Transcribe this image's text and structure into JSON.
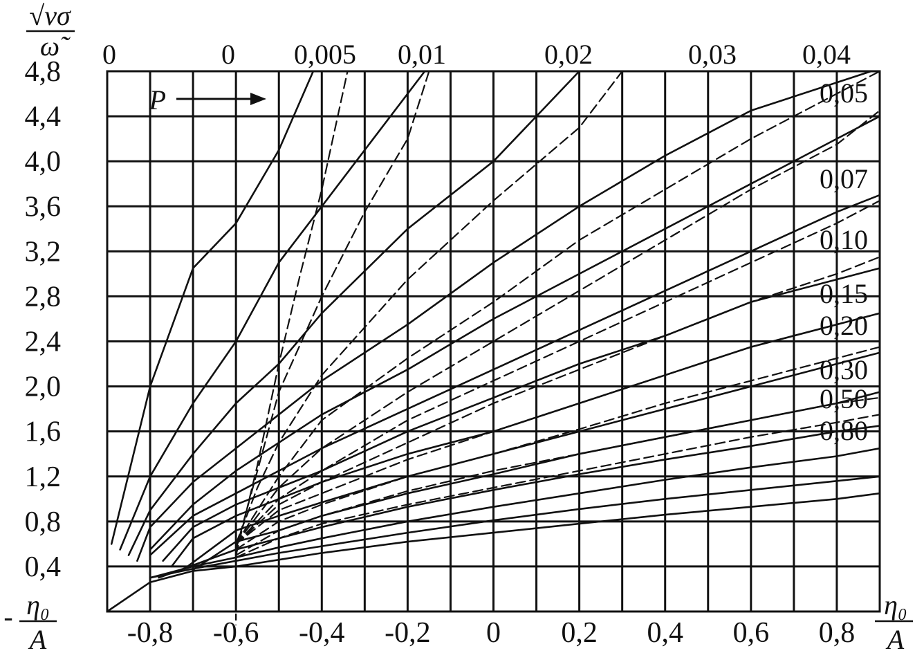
{
  "chart_data": {
    "type": "line",
    "x_axis_label_lines": [
      "η₀",
      "A"
    ],
    "x_axis_label_left_sign": "-",
    "y_axis_label_top": "√νσ",
    "y_axis_label_bottom": "ω̃",
    "xlim": [
      -0.9,
      0.9
    ],
    "ylim": [
      0,
      4.8
    ],
    "grid": true,
    "x_ticks": [
      -0.8,
      -0.6,
      -0.4,
      -0.2,
      0,
      0.2,
      0.4,
      0.6,
      0.8
    ],
    "x_tick_labels": [
      "-0,8",
      "-0,6",
      "-0,4",
      "-0,2",
      "0",
      "0,2",
      "0,4",
      "0,6",
      "0,8"
    ],
    "y_ticks": [
      0.4,
      0.8,
      1.2,
      1.6,
      2.0,
      2.4,
      2.8,
      3.2,
      3.6,
      4.0,
      4.4,
      4.8
    ],
    "y_tick_labels": [
      "0,4",
      "0,8",
      "1,2",
      "1,6",
      "2,0",
      "2,4",
      "2,8",
      "3,2",
      "3,6",
      "4,0",
      "4,4",
      "4,8"
    ],
    "marker_line": {
      "label": "P",
      "x": -0.6
    },
    "series": [
      {
        "name": "0",
        "style": "solid",
        "points": [
          [
            -0.89,
            0.6
          ],
          [
            -0.8,
            2.0
          ],
          [
            -0.7,
            3.05
          ],
          [
            -0.6,
            3.45
          ],
          [
            -0.5,
            4.1
          ],
          [
            -0.42,
            4.8
          ]
        ]
      },
      {
        "name": "0",
        "style": "dashed",
        "points": [
          [
            -0.6,
            0.5
          ],
          [
            -0.55,
            1.3
          ],
          [
            -0.5,
            2.2
          ],
          [
            -0.45,
            3.0
          ],
          [
            -0.4,
            3.75
          ],
          [
            -0.34,
            4.8
          ]
        ]
      },
      {
        "name": "0,005",
        "style": "solid",
        "points": [
          [
            -0.87,
            0.55
          ],
          [
            -0.8,
            1.2
          ],
          [
            -0.7,
            1.85
          ],
          [
            -0.6,
            2.4
          ],
          [
            -0.5,
            3.1
          ],
          [
            -0.4,
            3.6
          ],
          [
            -0.3,
            4.1
          ],
          [
            -0.16,
            4.8
          ]
        ]
      },
      {
        "name": "0,005",
        "style": "dashed",
        "points": [
          [
            -0.6,
            0.55
          ],
          [
            -0.55,
            1.25
          ],
          [
            -0.5,
            1.95
          ],
          [
            -0.4,
            2.8
          ],
          [
            -0.3,
            3.55
          ],
          [
            -0.2,
            4.2
          ],
          [
            -0.15,
            4.8
          ]
        ]
      },
      {
        "name": "0,01",
        "style": "solid",
        "points": [
          [
            -0.85,
            0.5
          ],
          [
            -0.8,
            0.9
          ],
          [
            -0.7,
            1.4
          ],
          [
            -0.6,
            1.85
          ],
          [
            -0.5,
            2.2
          ],
          [
            -0.4,
            2.65
          ],
          [
            -0.2,
            3.4
          ],
          [
            0,
            4.0
          ],
          [
            0.1,
            4.4
          ],
          [
            0.2,
            4.8
          ]
        ]
      },
      {
        "name": "0,01",
        "style": "dashed",
        "points": [
          [
            -0.6,
            0.6
          ],
          [
            -0.55,
            1.1
          ],
          [
            -0.5,
            1.5
          ],
          [
            -0.4,
            2.1
          ],
          [
            -0.2,
            2.95
          ],
          [
            0,
            3.65
          ],
          [
            0.2,
            4.3
          ],
          [
            0.3,
            4.8
          ]
        ]
      },
      {
        "name": "0,02",
        "style": "solid",
        "points": [
          [
            -0.83,
            0.45
          ],
          [
            -0.8,
            0.75
          ],
          [
            -0.7,
            1.15
          ],
          [
            -0.6,
            1.45
          ],
          [
            -0.5,
            1.75
          ],
          [
            -0.4,
            2.05
          ],
          [
            -0.2,
            2.55
          ],
          [
            0,
            3.1
          ],
          [
            0.2,
            3.6
          ],
          [
            0.4,
            4.05
          ],
          [
            0.6,
            4.45
          ],
          [
            0.88,
            4.8
          ]
        ]
      },
      {
        "name": "0,02",
        "style": "dashed",
        "points": [
          [
            -0.6,
            0.6
          ],
          [
            -0.5,
            1.2
          ],
          [
            -0.4,
            1.7
          ],
          [
            -0.2,
            2.25
          ],
          [
            0,
            2.75
          ],
          [
            0.2,
            3.3
          ],
          [
            0.4,
            3.75
          ],
          [
            0.6,
            4.2
          ],
          [
            0.8,
            4.6
          ],
          [
            0.9,
            4.8
          ]
        ]
      },
      {
        "name": "0,03",
        "style": "solid",
        "points": [
          [
            -0.8,
            0.55
          ],
          [
            -0.7,
            0.95
          ],
          [
            -0.6,
            1.25
          ],
          [
            -0.5,
            1.5
          ],
          [
            -0.4,
            1.75
          ],
          [
            -0.2,
            2.15
          ],
          [
            0,
            2.6
          ],
          [
            0.2,
            3.0
          ],
          [
            0.4,
            3.4
          ],
          [
            0.6,
            3.8
          ],
          [
            0.8,
            4.2
          ],
          [
            0.9,
            4.4
          ]
        ]
      },
      {
        "name": "0,03",
        "style": "dashed",
        "points": [
          [
            -0.6,
            0.6
          ],
          [
            -0.5,
            1.1
          ],
          [
            -0.4,
            1.45
          ],
          [
            -0.2,
            1.95
          ],
          [
            0,
            2.4
          ],
          [
            0.2,
            2.85
          ],
          [
            0.4,
            3.3
          ],
          [
            0.6,
            3.75
          ],
          [
            0.8,
            4.15
          ],
          [
            0.9,
            4.45
          ]
        ]
      },
      {
        "name": "0,04",
        "style": "solid",
        "points": [
          [
            -0.8,
            0.5
          ],
          [
            -0.7,
            0.85
          ],
          [
            -0.6,
            1.05
          ],
          [
            -0.5,
            1.25
          ],
          [
            -0.4,
            1.45
          ],
          [
            -0.2,
            1.8
          ],
          [
            0,
            2.15
          ],
          [
            0.2,
            2.5
          ],
          [
            0.4,
            2.85
          ],
          [
            0.6,
            3.2
          ],
          [
            0.8,
            3.55
          ],
          [
            0.9,
            3.7
          ]
        ]
      },
      {
        "name": "0,04",
        "style": "dashed",
        "points": [
          [
            -0.6,
            0.6
          ],
          [
            -0.5,
            1.0
          ],
          [
            -0.4,
            1.25
          ],
          [
            -0.2,
            1.7
          ],
          [
            0,
            2.05
          ],
          [
            0.2,
            2.4
          ],
          [
            0.4,
            2.75
          ],
          [
            0.6,
            3.1
          ],
          [
            0.8,
            3.45
          ],
          [
            0.9,
            3.65
          ]
        ]
      },
      {
        "name": "0,05",
        "style": "solid",
        "points": [
          [
            -0.77,
            0.45
          ],
          [
            -0.7,
            0.75
          ],
          [
            -0.6,
            0.95
          ],
          [
            -0.5,
            1.1
          ],
          [
            -0.4,
            1.25
          ],
          [
            -0.2,
            1.6
          ],
          [
            0,
            1.9
          ],
          [
            0.2,
            2.2
          ],
          [
            0.4,
            2.45
          ],
          [
            0.6,
            2.75
          ],
          [
            0.8,
            2.95
          ],
          [
            0.9,
            3.05
          ]
        ]
      },
      {
        "name": "0,05",
        "style": "dashed",
        "points": [
          [
            -0.6,
            0.6
          ],
          [
            -0.5,
            0.95
          ],
          [
            -0.4,
            1.15
          ],
          [
            -0.2,
            1.5
          ],
          [
            0,
            1.85
          ],
          [
            0.2,
            2.15
          ],
          [
            0.4,
            2.45
          ],
          [
            0.6,
            2.75
          ],
          [
            0.8,
            3.0
          ],
          [
            0.9,
            3.15
          ]
        ]
      },
      {
        "name": "0,07",
        "style": "solid",
        "points": [
          [
            -0.75,
            0.4
          ],
          [
            -0.7,
            0.65
          ],
          [
            -0.6,
            0.85
          ],
          [
            -0.5,
            1.0
          ],
          [
            -0.4,
            1.15
          ],
          [
            -0.2,
            1.4
          ],
          [
            0,
            1.6
          ],
          [
            0.2,
            1.85
          ],
          [
            0.4,
            2.1
          ],
          [
            0.6,
            2.35
          ],
          [
            0.8,
            2.55
          ],
          [
            0.9,
            2.65
          ]
        ]
      },
      {
        "name": "0,07",
        "style": "dashed",
        "points": [
          [
            -0.6,
            0.6
          ],
          [
            -0.5,
            0.9
          ],
          [
            -0.4,
            1.05
          ],
          [
            -0.2,
            1.35
          ],
          [
            0,
            1.6
          ],
          [
            0.2,
            1.85
          ],
          [
            0.4,
            2.1
          ],
          [
            0.6,
            2.35
          ],
          [
            0.8,
            2.55
          ],
          [
            0.9,
            2.65
          ]
        ]
      },
      {
        "name": "0,10",
        "style": "solid",
        "points": [
          [
            -0.72,
            0.38
          ],
          [
            -0.6,
            0.72
          ],
          [
            -0.5,
            0.85
          ],
          [
            -0.4,
            0.97
          ],
          [
            -0.2,
            1.2
          ],
          [
            0,
            1.4
          ],
          [
            0.2,
            1.6
          ],
          [
            0.4,
            1.8
          ],
          [
            0.6,
            2.0
          ],
          [
            0.8,
            2.2
          ],
          [
            0.9,
            2.3
          ]
        ]
      },
      {
        "name": "0,10",
        "style": "dashed",
        "points": [
          [
            -0.6,
            0.55
          ],
          [
            -0.5,
            0.8
          ],
          [
            -0.4,
            0.95
          ],
          [
            -0.2,
            1.2
          ],
          [
            0,
            1.4
          ],
          [
            0.2,
            1.62
          ],
          [
            0.4,
            1.85
          ],
          [
            0.6,
            2.05
          ],
          [
            0.8,
            2.25
          ],
          [
            0.9,
            2.35
          ]
        ]
      },
      {
        "name": "0,15",
        "style": "solid",
        "points": [
          [
            -0.7,
            0.37
          ],
          [
            -0.6,
            0.62
          ],
          [
            -0.5,
            0.72
          ],
          [
            -0.4,
            0.85
          ],
          [
            -0.2,
            1.05
          ],
          [
            0,
            1.22
          ],
          [
            0.2,
            1.4
          ],
          [
            0.4,
            1.55
          ],
          [
            0.6,
            1.7
          ],
          [
            0.8,
            1.85
          ],
          [
            0.9,
            1.95
          ]
        ]
      },
      {
        "name": "0,15",
        "style": "dashed",
        "points": [
          [
            -0.6,
            0.5
          ],
          [
            -0.5,
            0.72
          ],
          [
            -0.4,
            0.85
          ],
          [
            -0.2,
            1.07
          ],
          [
            0,
            1.25
          ],
          [
            0.2,
            1.4
          ],
          [
            0.4,
            1.55
          ],
          [
            0.6,
            1.7
          ],
          [
            0.8,
            1.85
          ],
          [
            0.9,
            1.9
          ]
        ]
      },
      {
        "name": "0,20",
        "style": "solid",
        "points": [
          [
            -0.78,
            0.3
          ],
          [
            -0.6,
            0.55
          ],
          [
            -0.5,
            0.65
          ],
          [
            -0.4,
            0.75
          ],
          [
            -0.2,
            0.93
          ],
          [
            0,
            1.08
          ],
          [
            0.2,
            1.22
          ],
          [
            0.4,
            1.35
          ],
          [
            0.6,
            1.47
          ],
          [
            0.8,
            1.6
          ],
          [
            0.9,
            1.65
          ]
        ]
      },
      {
        "name": "0,20",
        "style": "dashed",
        "points": [
          [
            -0.6,
            0.48
          ],
          [
            -0.5,
            0.65
          ],
          [
            -0.4,
            0.78
          ],
          [
            -0.2,
            0.95
          ],
          [
            0,
            1.1
          ],
          [
            0.2,
            1.25
          ],
          [
            0.4,
            1.4
          ],
          [
            0.6,
            1.55
          ],
          [
            0.8,
            1.68
          ],
          [
            0.9,
            1.75
          ]
        ]
      },
      {
        "name": "0,30",
        "style": "solid",
        "points": [
          [
            -0.8,
            0.3
          ],
          [
            -0.7,
            0.4
          ],
          [
            -0.6,
            0.48
          ],
          [
            -0.5,
            0.57
          ],
          [
            -0.4,
            0.65
          ],
          [
            -0.2,
            0.8
          ],
          [
            0,
            0.93
          ],
          [
            0.2,
            1.05
          ],
          [
            0.4,
            1.17
          ],
          [
            0.6,
            1.28
          ],
          [
            0.8,
            1.38
          ],
          [
            0.9,
            1.45
          ]
        ]
      },
      {
        "name": "0,50",
        "style": "solid",
        "points": [
          [
            -0.8,
            0.3
          ],
          [
            -0.7,
            0.38
          ],
          [
            -0.6,
            0.45
          ],
          [
            -0.5,
            0.52
          ],
          [
            -0.4,
            0.58
          ],
          [
            -0.2,
            0.7
          ],
          [
            0,
            0.81
          ],
          [
            0.2,
            0.91
          ],
          [
            0.4,
            1.0
          ],
          [
            0.6,
            1.08
          ],
          [
            0.8,
            1.16
          ],
          [
            0.9,
            1.2
          ]
        ]
      },
      {
        "name": "0,80",
        "style": "solid",
        "points": [
          [
            -0.9,
            0.0
          ],
          [
            -0.8,
            0.26
          ],
          [
            -0.7,
            0.36
          ],
          [
            -0.6,
            0.4
          ],
          [
            -0.5,
            0.46
          ],
          [
            -0.4,
            0.52
          ],
          [
            -0.2,
            0.62
          ],
          [
            0,
            0.7
          ],
          [
            0.2,
            0.78
          ],
          [
            0.4,
            0.86
          ],
          [
            0.6,
            0.93
          ],
          [
            0.8,
            1.0
          ],
          [
            0.9,
            1.05
          ]
        ]
      }
    ],
    "curve_labels_top": [
      "0",
      "0",
      "0,005",
      "0,01",
      "0,02",
      "0,03",
      "0,04"
    ],
    "curve_labels_right": [
      "0,05",
      "0,07",
      "0,10",
      "0,15",
      "0,20",
      "0,30",
      "0,50",
      "0,80"
    ]
  }
}
